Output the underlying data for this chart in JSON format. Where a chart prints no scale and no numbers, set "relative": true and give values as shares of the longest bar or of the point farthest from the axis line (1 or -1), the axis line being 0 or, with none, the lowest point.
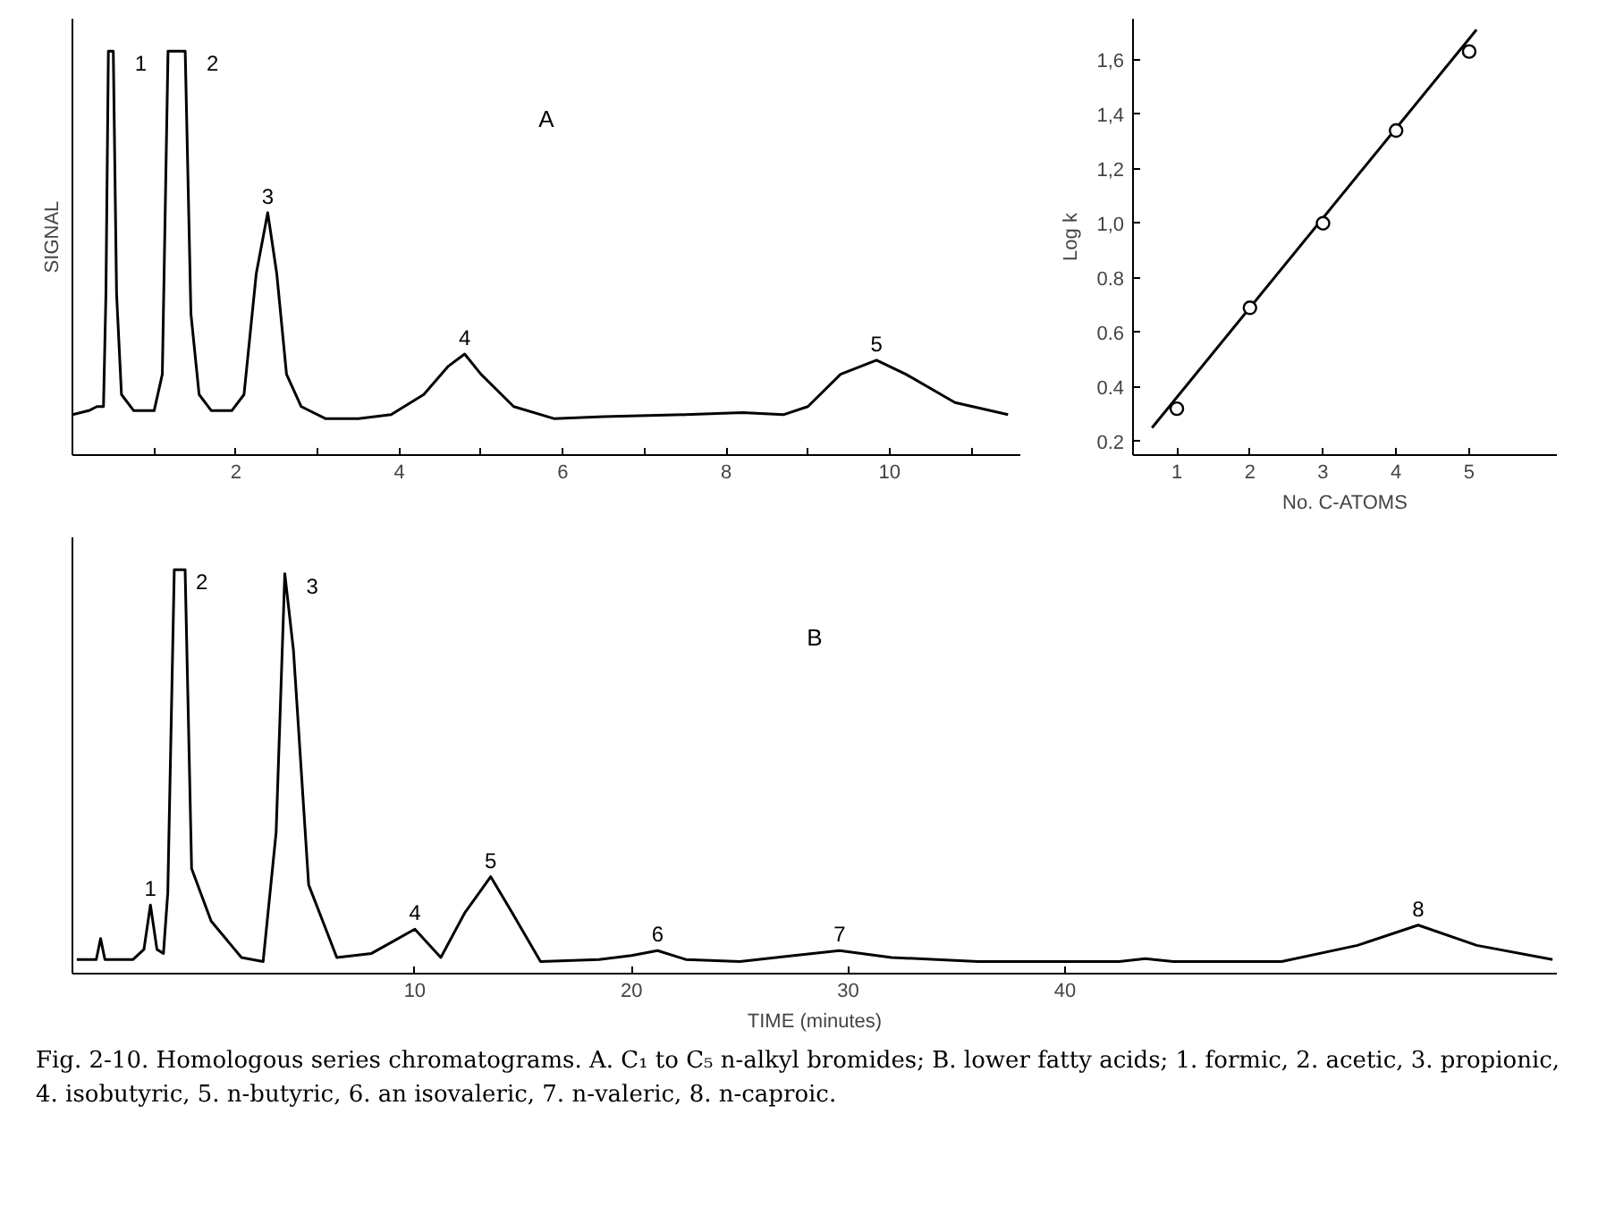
{
  "chart_data": [
    {
      "type": "line",
      "relative": true,
      "ylabel": "SIGNAL",
      "tick_labels": "x",
      "line_style": "solid",
      "xlim": [
        0,
        11.6
      ],
      "xticks": [
        {
          "value": 1,
          "label": null
        },
        2,
        {
          "value": 3,
          "label": null
        },
        4,
        {
          "value": 5,
          "label": null
        },
        6,
        {
          "value": 7,
          "label": null
        },
        8,
        {
          "value": 9,
          "label": null
        },
        10,
        {
          "value": 11,
          "label": null
        }
      ],
      "series": [
        {
          "color": "#000000",
          "x": [
            0.0,
            0.2,
            0.3,
            0.38,
            0.41,
            0.44,
            0.5,
            0.54,
            0.6,
            0.75,
            1.0,
            1.1,
            1.17,
            1.38,
            1.45,
            1.55,
            1.7,
            1.95,
            2.1,
            2.25,
            2.39,
            2.5,
            2.62,
            2.8,
            3.1,
            3.5,
            3.9,
            4.3,
            4.6,
            4.8,
            5.0,
            5.4,
            5.9,
            6.5,
            7.5,
            8.2,
            8.7,
            9.0,
            9.4,
            9.84,
            10.2,
            10.8,
            11.45
          ],
          "values": [
            0.1,
            0.11,
            0.12,
            0.12,
            0.4,
            1.0,
            1.0,
            0.4,
            0.15,
            0.11,
            0.11,
            0.2,
            1.0,
            1.0,
            0.35,
            0.15,
            0.11,
            0.11,
            0.15,
            0.45,
            0.6,
            0.45,
            0.2,
            0.12,
            0.09,
            0.09,
            0.1,
            0.15,
            0.22,
            0.25,
            0.2,
            0.12,
            0.09,
            0.095,
            0.1,
            0.105,
            0.1,
            0.12,
            0.2,
            0.235,
            0.2,
            0.13,
            0.1
          ]
        }
      ],
      "annotations": [
        "A",
        {
          "text": "1",
          "x": 0.5,
          "y": 1.0
        },
        {
          "text": "2",
          "x": 1.38,
          "y": 1.0
        },
        {
          "text": "3",
          "x": 2.39,
          "y": 0.6
        },
        {
          "text": "4",
          "x": 4.8,
          "y": 0.25
        },
        {
          "text": "5",
          "x": 9.84,
          "y": 0.235
        }
      ]
    },
    {
      "type": "scatter",
      "xlabel": "No. C-ATOMS",
      "ylabel": "Log k",
      "xlim": [
        0.4,
        6.2
      ],
      "xticks": [
        1,
        2,
        3,
        4,
        5
      ],
      "ylim": [
        0.15,
        1.75
      ],
      "yticks": [
        0.2,
        0.4,
        0.6,
        0.8,
        {
          "value": 1.0,
          "label": "1,0"
        },
        {
          "value": 1.2,
          "label": "1,2"
        },
        {
          "value": 1.4,
          "label": "1,4"
        },
        {
          "value": 1.6,
          "label": "1,6"
        }
      ],
      "x": [
        1,
        2,
        3,
        4,
        5
      ],
      "series": [
        {
          "color": "#000000",
          "marker": "circle",
          "values": [
            0.32,
            0.69,
            1.0,
            1.34,
            1.63
          ]
        },
        {
          "type": "line",
          "color": "#000000",
          "x": [
            0.66,
            5.1
          ],
          "values": [
            0.25,
            1.71
          ]
        }
      ]
    },
    {
      "type": "line",
      "relative": true,
      "xlabel": "TIME (minutes)",
      "tick_labels": "x",
      "line_style": "solid",
      "xlim": [
        -5.8,
        62.7
      ],
      "xticks": [
        10,
        20,
        30,
        40
      ],
      "series": [
        {
          "color": "#000000",
          "x": [
            -5.6,
            -4.7,
            -4.5,
            -4.3,
            -3.0,
            -2.5,
            -2.2,
            -1.9,
            -1.6,
            -1.4,
            -1.1,
            -0.6,
            -0.3,
            0.6,
            2.0,
            3.0,
            3.6,
            4.0,
            4.4,
            5.1,
            6.4,
            8.0,
            9.0,
            10.0,
            11.2,
            12.3,
            13.5,
            14.5,
            15.8,
            18.5,
            20.0,
            21.2,
            22.5,
            25.0,
            27.5,
            29.6,
            32.0,
            36.0,
            42.5,
            43.7,
            45.0,
            50.0,
            53.5,
            56.3,
            59.0,
            62.5
          ],
          "values": [
            0.035,
            0.035,
            0.087,
            0.035,
            0.035,
            0.06,
            0.17,
            0.06,
            0.05,
            0.2,
            1.0,
            1.0,
            0.26,
            0.13,
            0.04,
            0.03,
            0.35,
            0.99,
            0.8,
            0.22,
            0.04,
            0.05,
            0.08,
            0.11,
            0.04,
            0.15,
            0.24,
            0.15,
            0.03,
            0.035,
            0.045,
            0.057,
            0.035,
            0.03,
            0.045,
            0.057,
            0.04,
            0.03,
            0.03,
            0.037,
            0.03,
            0.03,
            0.07,
            0.12,
            0.07,
            0.035
          ]
        }
      ],
      "annotations": [
        "B",
        {
          "text": "1",
          "x": -2.2,
          "y": 0.17
        },
        {
          "text": "2",
          "x": -1.1,
          "y": 1.0
        },
        {
          "text": "3",
          "x": 4.0,
          "y": 0.99
        },
        {
          "text": "4",
          "x": 10.0,
          "y": 0.11
        },
        {
          "text": "5",
          "x": 13.5,
          "y": 0.24
        },
        {
          "text": "6",
          "x": 21.2,
          "y": 0.057
        },
        {
          "text": "7",
          "x": 29.6,
          "y": 0.057
        },
        {
          "text": "8",
          "x": 56.3,
          "y": 0.12
        },
        "Fig. 2-10. Homologous series chromatograms. A. C₁ to C₅ n-alkyl bromides; B. lower fatty acids; 1. formic, 2. acetic, 3. propionic, 4. isobutyric, 5. n-butyric, 6. an isovaleric, 7. n-valeric, 8. n-caproic."
      ]
    }
  ]
}
